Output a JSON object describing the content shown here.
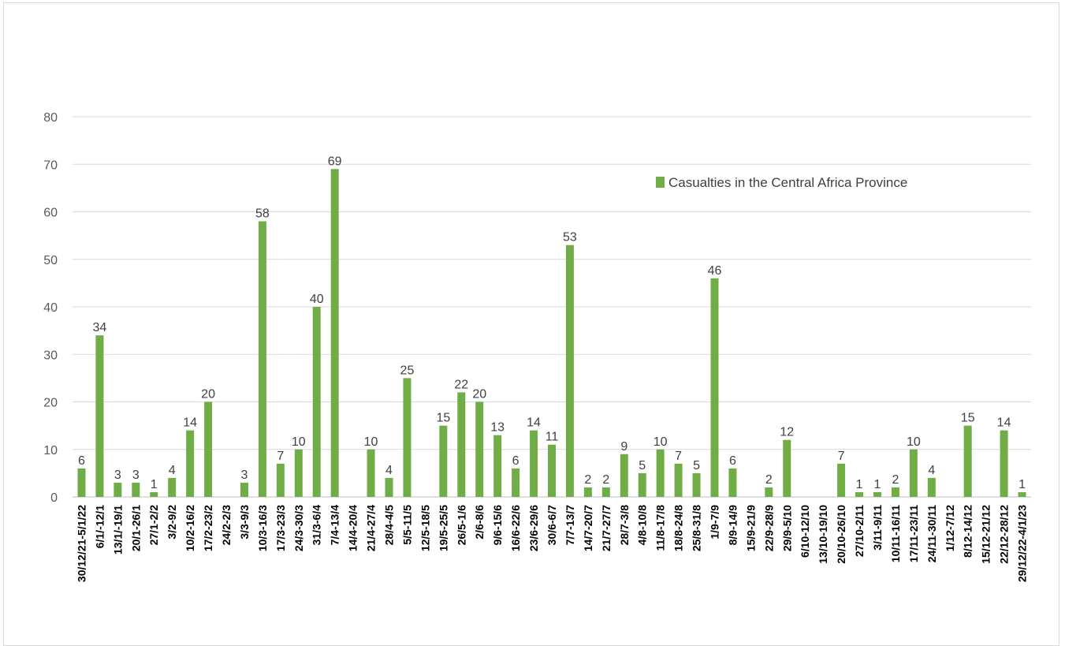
{
  "chart_data": {
    "type": "bar",
    "title": "",
    "xlabel": "",
    "ylabel": "",
    "ylim": [
      0,
      80
    ],
    "yticks": [
      0,
      10,
      20,
      30,
      40,
      50,
      60,
      70,
      80
    ],
    "grid": true,
    "legend_position": "top-right",
    "series_color": "#70ad47",
    "categories": [
      "30/12/21-5/1/22",
      "6/1/-12/1",
      "13/1/-19/1",
      "20/1-26/1",
      "27/1-2/2",
      "3/2-9/2",
      "10/2-16/2",
      "17/2-23/2",
      "24/2-2/3",
      "3/3-9/3",
      "10/3-16/3",
      "17/3-23/3",
      "24/3-30/3",
      "31/3-6/4",
      "7/4-13/4",
      "14/4-20/4",
      "21/4-27/4",
      "28/4-4/5",
      "5/5-11/5",
      "12/5-18/5",
      "19/5-25/5",
      "26/5-1/6",
      "2/6-8/6",
      "9/6-15/6",
      "16/6-22/6",
      "23/6-29/6",
      "30/6-6/7",
      "7/7-13/7",
      "14/7-20/7",
      "21/7-27/7",
      "28/7-3/8",
      "4/8-10/8",
      "11/8-17/8",
      "18/8-24/8",
      "25/8-31/8",
      "1/9-7/9",
      "8/9-14/9",
      "15/9-21/9",
      "22/9-28/9",
      "29/9-5/10",
      "6/10-12/10",
      "13/10-19/10",
      "20/10-26/10",
      "27/10-2/11",
      "3/11-9/11",
      "10/11-16/11",
      "17/11-23/11",
      "24/11-30/11",
      "1/12-7/12",
      "8/12-14/12",
      "15/12-21/12",
      "22/12-28/12",
      "29/12/22-4/1/23"
    ],
    "series": [
      {
        "name": "Casualties in the Central Africa Province",
        "values": [
          6,
          34,
          3,
          3,
          1,
          4,
          14,
          20,
          null,
          3,
          58,
          7,
          10,
          40,
          69,
          null,
          10,
          4,
          25,
          null,
          15,
          22,
          20,
          13,
          6,
          14,
          11,
          53,
          2,
          2,
          9,
          5,
          10,
          7,
          5,
          46,
          6,
          null,
          2,
          12,
          null,
          null,
          7,
          1,
          1,
          2,
          10,
          4,
          null,
          15,
          null,
          14,
          1
        ]
      }
    ]
  }
}
